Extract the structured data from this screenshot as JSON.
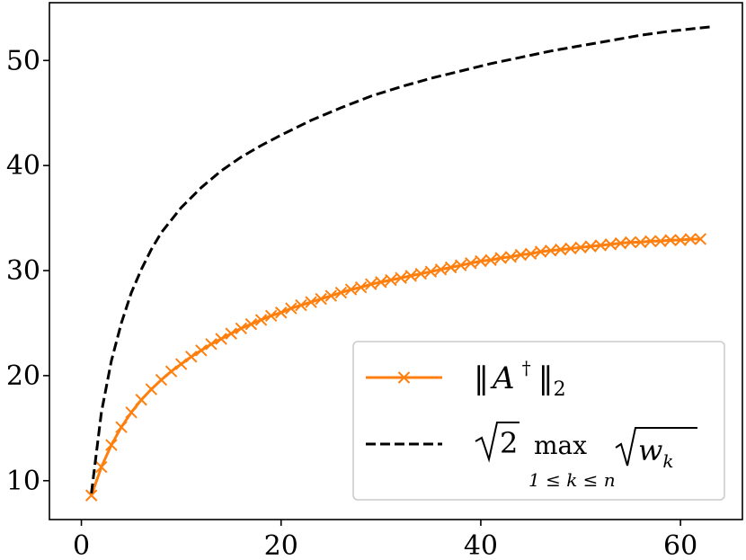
{
  "chart_data": {
    "type": "line",
    "title": "",
    "xlabel": "",
    "ylabel": "",
    "xlim": [
      -3.2,
      66.2
    ],
    "ylim": [
      6.3,
      55.5
    ],
    "xticks": [
      0,
      20,
      40,
      60
    ],
    "yticks": [
      10,
      20,
      30,
      40,
      50
    ],
    "x_tick_labels": [
      "0",
      "20",
      "40",
      "60"
    ],
    "y_tick_labels": [
      "10",
      "20",
      "30",
      "40",
      "50"
    ],
    "grid": false,
    "legend_position": "lower-right",
    "series": [
      {
        "name": "‖A†‖₂",
        "legend": {
          "norm": "‖",
          "symbol": "A",
          "sup": "†",
          "sub": "2"
        },
        "color": "#ff7f0e",
        "linestyle": "solid",
        "marker": "x",
        "x": [
          1,
          2,
          3,
          4,
          5,
          6,
          7,
          8,
          9,
          10,
          11,
          12,
          13,
          14,
          15,
          16,
          17,
          18,
          19,
          20,
          21,
          22,
          23,
          24,
          25,
          26,
          27,
          28,
          29,
          30,
          31,
          32,
          33,
          34,
          35,
          36,
          37,
          38,
          39,
          40,
          41,
          42,
          43,
          44,
          45,
          46,
          47,
          48,
          49,
          50,
          51,
          52,
          53,
          54,
          55,
          56,
          57,
          58,
          59,
          60,
          61,
          62
        ],
        "y": [
          8.6,
          11.3,
          13.4,
          15.1,
          16.5,
          17.7,
          18.7,
          19.6,
          20.4,
          21.1,
          21.8,
          22.4,
          23.0,
          23.5,
          24.0,
          24.5,
          24.9,
          25.3,
          25.7,
          26.0,
          26.4,
          26.7,
          27.0,
          27.3,
          27.6,
          27.9,
          28.2,
          28.4,
          28.7,
          28.9,
          29.1,
          29.3,
          29.5,
          29.7,
          29.9,
          30.1,
          30.3,
          30.5,
          30.7,
          30.9,
          31.0,
          31.2,
          31.3,
          31.5,
          31.6,
          31.8,
          31.9,
          32.0,
          32.1,
          32.2,
          32.3,
          32.4,
          32.5,
          32.6,
          32.7,
          32.7,
          32.8,
          32.8,
          32.9,
          32.9,
          33.0,
          33.0
        ]
      },
      {
        "name": "√2 max_{1≤k≤n} √w_k",
        "legend": {
          "sqrt2": "2",
          "op": "max",
          "range": "1 ≤ k ≤ n",
          "var": "w",
          "var_sub": "k"
        },
        "color": "#000000",
        "linestyle": "dashed",
        "marker": "none",
        "x": [
          1,
          2,
          3,
          4,
          5,
          6,
          7,
          8,
          10,
          12,
          14,
          16,
          18,
          20,
          23,
          26,
          29,
          32,
          35,
          38,
          41,
          44,
          47,
          50,
          53,
          56,
          59,
          63
        ],
        "y": [
          8.8,
          16.5,
          21.4,
          25.0,
          27.9,
          30.1,
          32.0,
          33.6,
          36.0,
          37.9,
          39.5,
          40.8,
          41.9,
          42.9,
          44.3,
          45.5,
          46.6,
          47.5,
          48.3,
          49.0,
          49.7,
          50.3,
          50.9,
          51.4,
          51.9,
          52.4,
          52.8,
          53.2
        ]
      }
    ]
  }
}
